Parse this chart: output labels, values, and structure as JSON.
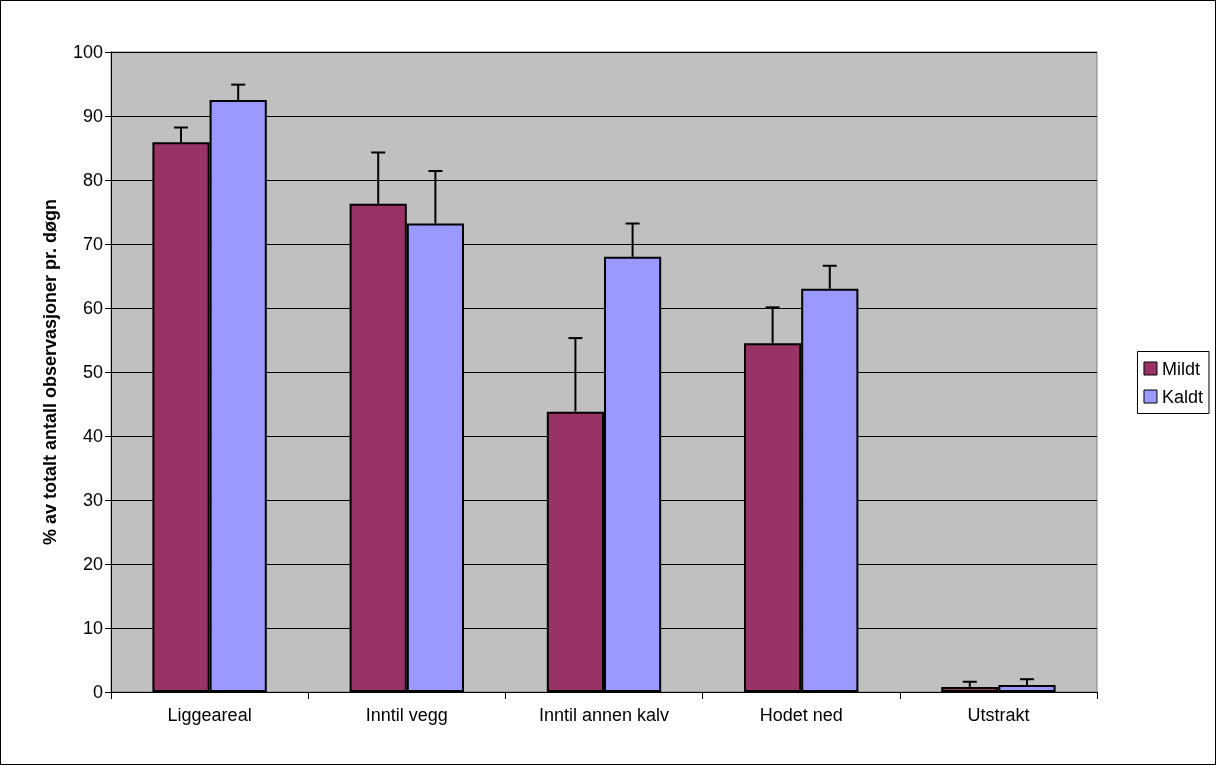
{
  "chart_data": {
    "type": "bar",
    "ylabel": "% av totalt antall observasjoner pr. døgn",
    "categories": [
      "Liggeareal",
      "Inntil vegg",
      "Inntil annen kalv",
      "Hodet ned",
      "Utstrakt"
    ],
    "series": [
      {
        "name": "Mildt",
        "color": "#993366",
        "values": [
          85.9,
          76.3,
          43.8,
          54.5,
          0.8
        ],
        "errors": [
          [
            85.9,
            88.2
          ],
          [
            76.3,
            84.3
          ],
          [
            43.8,
            55.3
          ],
          [
            54.5,
            60.1
          ],
          [
            0.8,
            1.6
          ]
        ]
      },
      {
        "name": "Kaldt",
        "color": "#9999ff",
        "values": [
          92.5,
          73.2,
          68.0,
          63.0,
          1.1
        ],
        "errors": [
          [
            92.5,
            94.9
          ],
          [
            73.2,
            81.4
          ],
          [
            68.0,
            73.2
          ],
          [
            63.0,
            66.6
          ],
          [
            1.1,
            2.0
          ]
        ]
      }
    ],
    "ylim": [
      0,
      100
    ],
    "yticks": [
      0,
      10,
      20,
      30,
      40,
      50,
      60,
      70,
      80,
      90,
      100
    ],
    "grid": "y",
    "legend": "right"
  }
}
